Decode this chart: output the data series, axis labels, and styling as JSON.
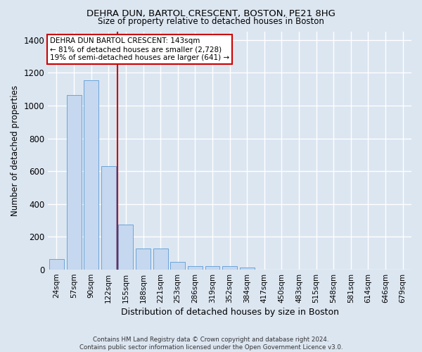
{
  "title1": "DEHRA DUN, BARTOL CRESCENT, BOSTON, PE21 8HG",
  "title2": "Size of property relative to detached houses in Boston",
  "xlabel": "Distribution of detached houses by size in Boston",
  "ylabel": "Number of detached properties",
  "categories": [
    "24sqm",
    "57sqm",
    "90sqm",
    "122sqm",
    "155sqm",
    "188sqm",
    "221sqm",
    "253sqm",
    "286sqm",
    "319sqm",
    "352sqm",
    "384sqm",
    "417sqm",
    "450sqm",
    "483sqm",
    "515sqm",
    "548sqm",
    "581sqm",
    "614sqm",
    "646sqm",
    "679sqm"
  ],
  "values": [
    65,
    1065,
    1155,
    630,
    275,
    130,
    130,
    48,
    20,
    20,
    20,
    15,
    0,
    0,
    0,
    0,
    0,
    0,
    0,
    0,
    0
  ],
  "bar_color": "#c5d8ef",
  "bar_edge_color": "#5b9bd5",
  "red_line_x": 3.5,
  "red_line_color": "#cc0000",
  "annotation_title": "DEHRA DUN BARTOL CRESCENT: 143sqm",
  "annotation_line1": "← 81% of detached houses are smaller (2,728)",
  "annotation_line2": "19% of semi-detached houses are larger (641) →",
  "annotation_box_color": "#ffffff",
  "annotation_border_color": "#cc0000",
  "ylim": [
    0,
    1450
  ],
  "background_color": "#dce6f1",
  "plot_bg_color": "#dce6f1",
  "grid_color": "#ffffff",
  "footer": "Contains HM Land Registry data © Crown copyright and database right 2024.\nContains public sector information licensed under the Open Government Licence v3.0."
}
